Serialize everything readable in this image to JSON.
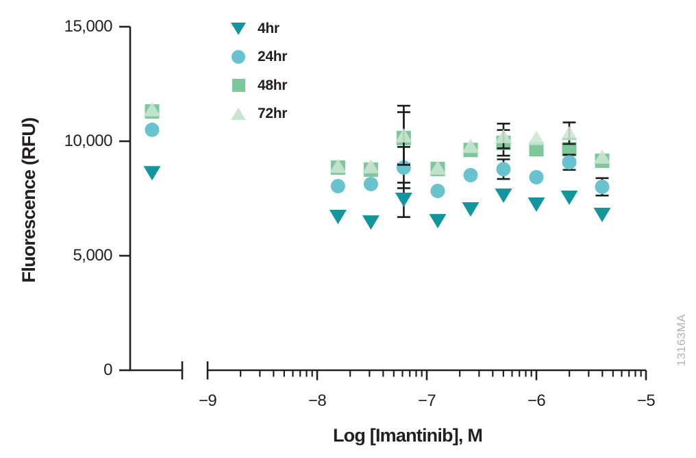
{
  "figure": {
    "watermark": "13163MA"
  },
  "chart_data": {
    "type": "scatter",
    "title": "",
    "xlabel": "Log [Imantinib], M",
    "ylabel": "Fluorescence (RFU)",
    "x_axis": {
      "scale": "log10",
      "tick_labels": [
        "−9",
        "−8",
        "−7",
        "−6",
        "−5"
      ],
      "tick_values": [
        -9,
        -8,
        -7,
        -6,
        -5
      ],
      "xlim": [
        -9,
        -5
      ],
      "axis_break": true,
      "minor_ticks": "log sub-decade ticks (2-9) in each decade"
    },
    "y_axis": {
      "tick_labels": [
        "0",
        "5,000",
        "10,000",
        "15,000"
      ],
      "tick_values": [
        0,
        5000,
        10000,
        15000
      ],
      "ylim": [
        0,
        15000
      ]
    },
    "x_log10": [
      -7.81,
      -7.51,
      -7.21,
      -6.9,
      -6.6,
      -6.3,
      -6.0,
      -5.7,
      -5.4
    ],
    "has_zero_control_point_left_of_break": true,
    "series": [
      {
        "name": "4hr",
        "marker": "triangle-down",
        "color": "#12959C",
        "opacity": 1,
        "control": 8600,
        "values": [
          6690,
          6450,
          7440,
          6510,
          7020,
          7620,
          7230,
          7530,
          6780
        ],
        "errors": [
          0,
          0,
          750,
          0,
          0,
          0,
          0,
          0,
          0
        ]
      },
      {
        "name": "24hr",
        "marker": "circle",
        "color": "#68C3CF",
        "opacity": 1,
        "control": 10500,
        "values": [
          8040,
          8130,
          8850,
          7830,
          8520,
          8780,
          8430,
          9080,
          8010
        ],
        "errors": [
          0,
          0,
          900,
          0,
          0,
          430,
          0,
          330,
          380
        ]
      },
      {
        "name": "48hr",
        "marker": "square",
        "color": "#7EC79B",
        "opacity": 1,
        "control": 11300,
        "values": [
          8850,
          8760,
          10140,
          8790,
          9620,
          9930,
          9650,
          9650,
          9150
        ],
        "errors": [
          0,
          0,
          1130,
          0,
          0,
          560,
          0,
          450,
          0
        ]
      },
      {
        "name": "72hr",
        "marker": "triangle-up",
        "color": "#C9E6D2",
        "opacity": 0.88,
        "control": 11400,
        "values": [
          8930,
          8910,
          10260,
          8850,
          9800,
          10230,
          10150,
          10350,
          9330
        ],
        "errors": [
          0,
          0,
          1290,
          0,
          0,
          540,
          0,
          470,
          0
        ]
      }
    ],
    "legend": {
      "position": "top-left-inside",
      "items": [
        "4hr",
        "24hr",
        "48hr",
        "72hr"
      ]
    },
    "colors": {
      "axis": "#231F20",
      "error_bar": "#1C1C1C",
      "watermark": "#B3B3B3",
      "background": "#FFFFFF"
    }
  }
}
